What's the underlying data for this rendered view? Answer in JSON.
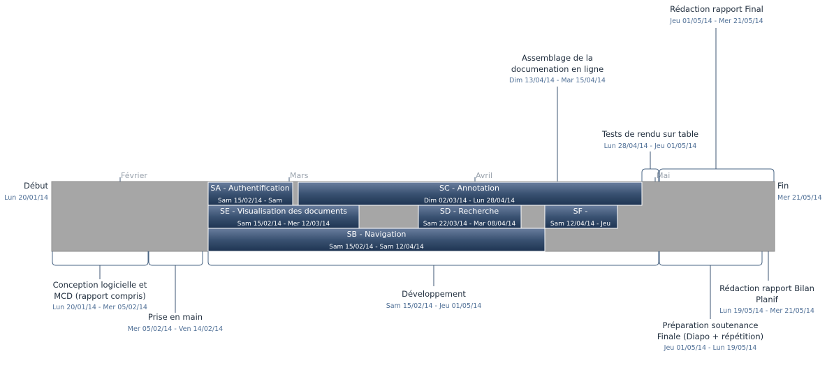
{
  "start": {
    "label": "Début",
    "date": "Lun 20/01/14"
  },
  "end": {
    "label": "Fin",
    "date": "Mer 21/05/14"
  },
  "months": [
    "Février",
    "Mars",
    "Avril",
    "Mai"
  ],
  "tasks": [
    {
      "title": "SA - Authentification",
      "dates": "Sam 15/02/14 - Sam"
    },
    {
      "title": "SC - Annotation",
      "dates": "Dim 02/03/14 - Lun 28/04/14"
    },
    {
      "title": "SE - Visualisation des documents",
      "dates": "Sam 15/02/14 - Mer 12/03/14"
    },
    {
      "title": "SD - Recherche",
      "dates": "Sam 22/03/14 - Mar 08/04/14"
    },
    {
      "title": "SF -",
      "dates": "Sam 12/04/14 - Jeu"
    },
    {
      "title": "SB - Navigation",
      "dates": "Sam 15/02/14 - Sam 12/04/14"
    }
  ],
  "callouts_above": [
    {
      "lines": [
        "Rédaction rapport Final"
      ],
      "dates": "Jeu 01/05/14 - Mer 21/05/14"
    },
    {
      "lines": [
        "Assemblage de la",
        "documenation en ligne"
      ],
      "dates": "Dim 13/04/14 - Mar 15/04/14"
    },
    {
      "lines": [
        "Tests de rendu sur table"
      ],
      "dates": "Lun 28/04/14 - Jeu 01/05/14"
    }
  ],
  "callouts_below": [
    {
      "lines": [
        "Conception logicielle et",
        "MCD (rapport compris)"
      ],
      "dates": "Lun 20/01/14 - Mer 05/02/14"
    },
    {
      "lines": [
        "Prise en main"
      ],
      "dates": "Mer 05/02/14 - Ven 14/02/14"
    },
    {
      "lines": [
        "Développement"
      ],
      "dates": "Sam 15/02/14 - Jeu 01/05/14"
    },
    {
      "lines": [
        "Rédaction rapport Bilan",
        "Planif"
      ],
      "dates": "Lun 19/05/14 - Mer 21/05/14"
    },
    {
      "lines": [
        "Préparation soutenance",
        "Finale (Diapo + répétition)"
      ],
      "dates": "Jeu 01/05/14 - Lun 19/05/14"
    }
  ],
  "colors": {
    "timeline": "#a6a6a6",
    "task_top": "#627696",
    "task_bottom": "#1e3452",
    "text": "#1f2d3d",
    "date": "#4f6f96"
  }
}
